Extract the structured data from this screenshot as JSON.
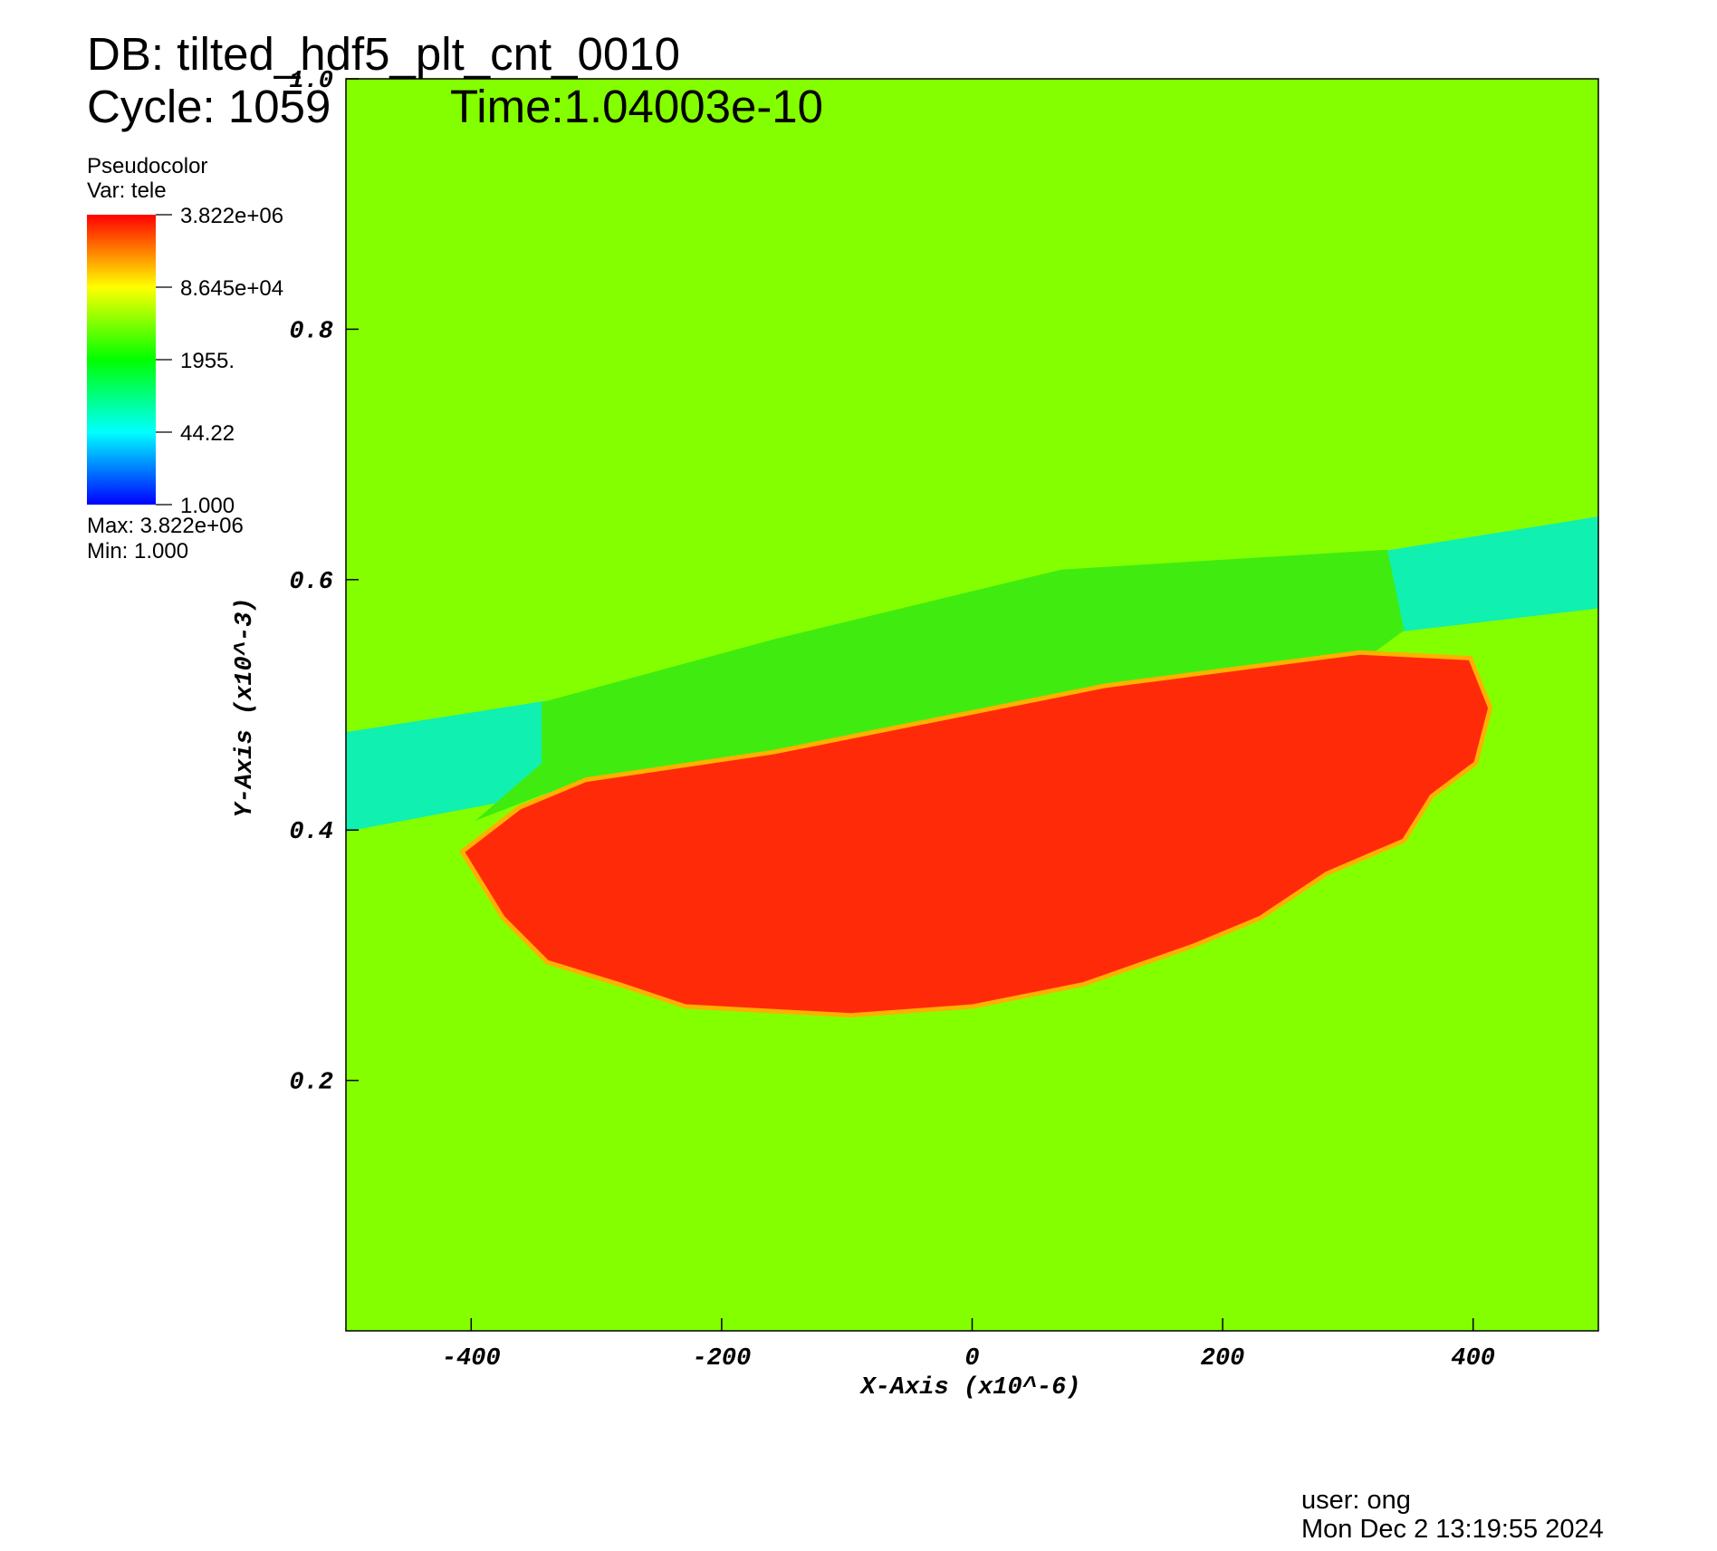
{
  "chart_data": {
    "type": "pseudocolor",
    "title_lines": [
      "DB: tilted_hdf5_plt_cnt_0010",
      "Cycle: 1059",
      "Time:1.04003e-10"
    ],
    "plot_name": "Pseudocolor",
    "variable": "Var: tele",
    "x_label": "X-Axis (x10^-6)",
    "y_label": "Y-Axis (x10^-3)",
    "xlim": [
      -500,
      500
    ],
    "xticks": [
      -400,
      -200,
      0,
      200,
      400
    ],
    "ylim": [
      0,
      1
    ],
    "yticks": [
      0.2,
      0.4,
      0.6,
      0.8,
      {
        "value": 1,
        "label": "1.0"
      }
    ],
    "colorbar": {
      "scale": "log",
      "lim": [
        1,
        3822000
      ],
      "ticks": [
        {
          "value": 3822000,
          "label": "3.822e+06"
        },
        {
          "value": 86450,
          "label": "8.645e+04"
        },
        {
          "value": 1955,
          "label": "1955."
        },
        44.22,
        {
          "value": 1,
          "label": "1.000"
        }
      ],
      "colors": [
        "#0000ff",
        "#00ffff",
        "#00ff00",
        "#ffff00",
        "#ff0000"
      ],
      "max_text": "Max:  3.822e+06",
      "min_text": "Min:  1.000"
    },
    "user": "user: ong",
    "date": "Mon Dec  2 13:19:55 2024"
  }
}
